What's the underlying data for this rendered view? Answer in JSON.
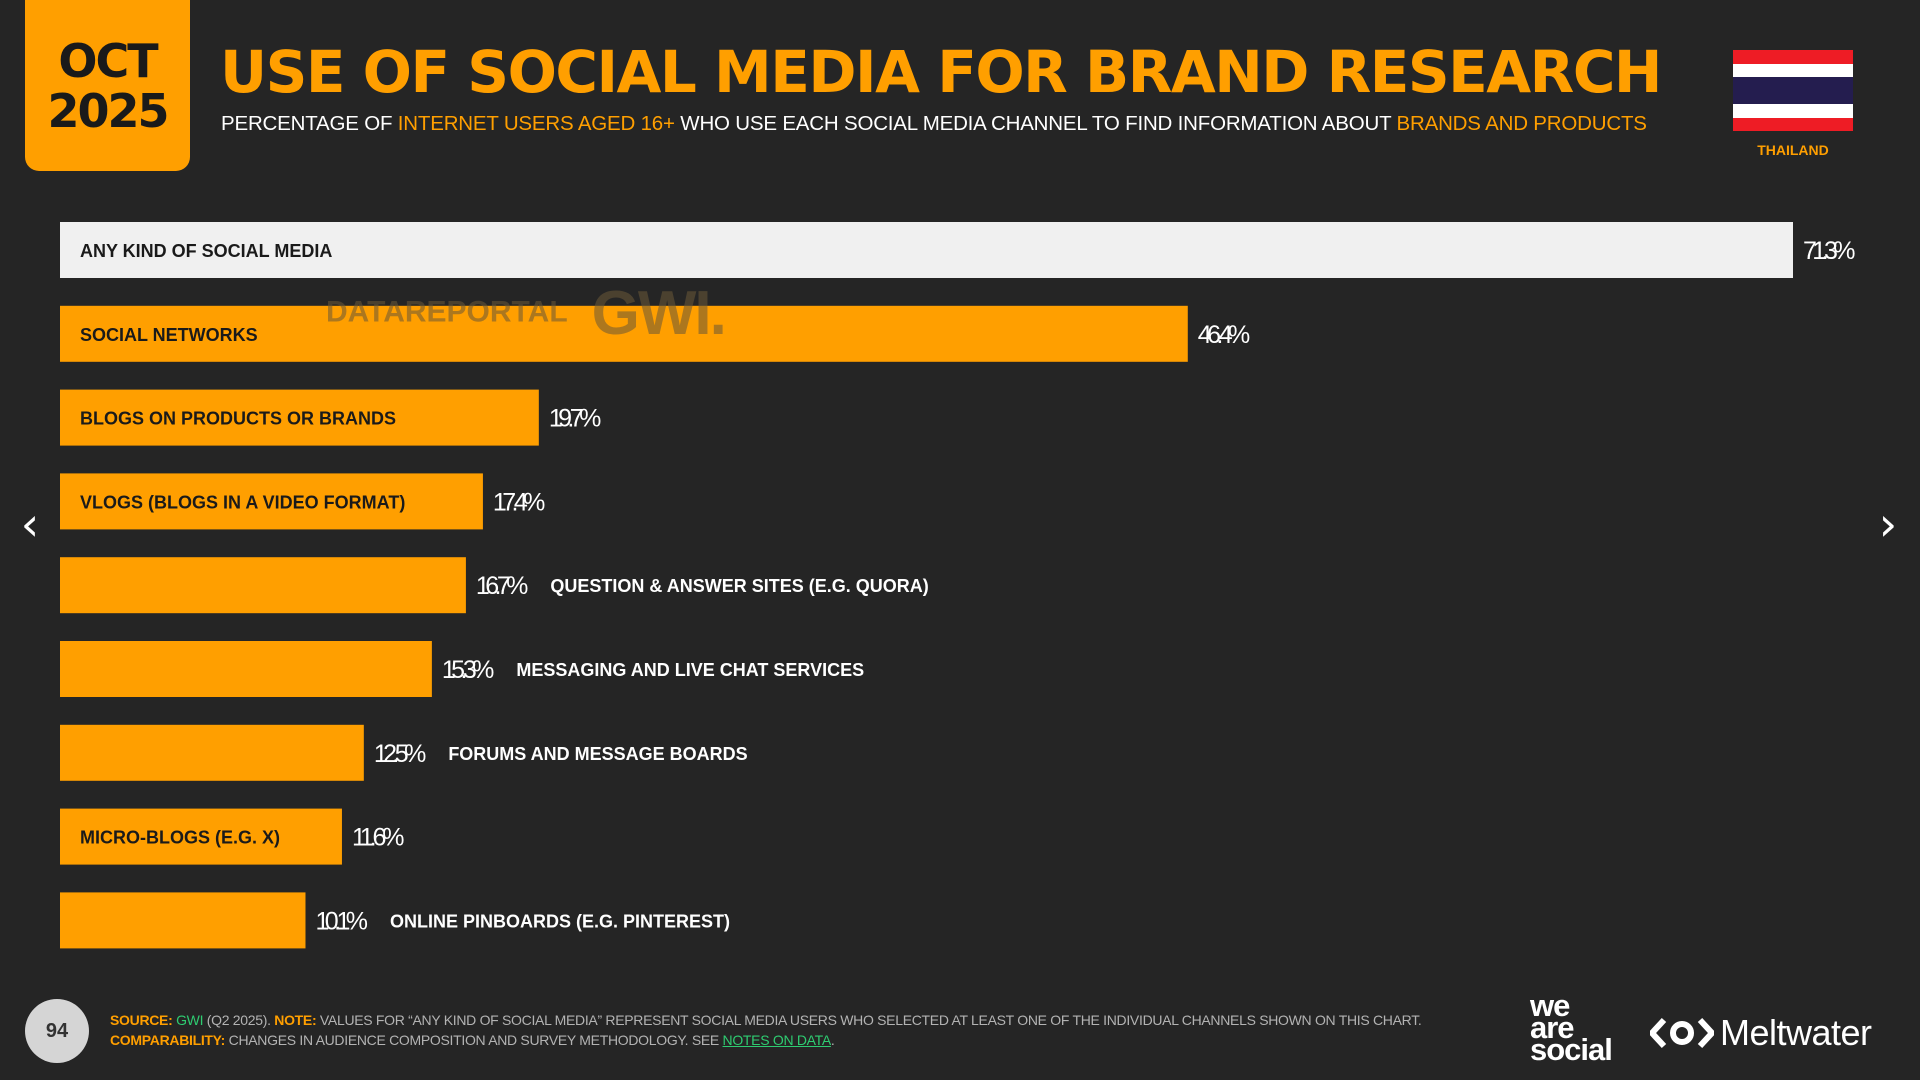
{
  "header": {
    "date_month": "OCT",
    "date_year": "2025",
    "title": "USE OF SOCIAL MEDIA FOR BRAND RESEARCH",
    "subtitle_parts": [
      "PERCENTAGE OF ",
      "INTERNET USERS AGED 16+",
      " WHO USE EACH SOCIAL MEDIA CHANNEL TO FIND INFORMATION ABOUT ",
      "BRANDS AND PRODUCTS"
    ]
  },
  "flag": {
    "country": "THAILAND",
    "colors": [
      "#EE1C25",
      "#FFFFFF",
      "#241D4F",
      "#FFFFFF",
      "#EE1C25"
    ]
  },
  "watermark": {
    "brand": "DATAREPORTAL",
    "partner": "GWI."
  },
  "nav": {
    "prev_glyph": "‹",
    "next_glyph": "›"
  },
  "colors": {
    "accent": "#FF9F00",
    "total_bar": "#F0F0F0",
    "background": "#252525"
  },
  "chart_data": {
    "type": "bar",
    "orientation": "horizontal",
    "categories": [
      "ANY KIND OF SOCIAL MEDIA",
      "SOCIAL NETWORKS",
      "BLOGS ON PRODUCTS OR BRANDS",
      "VLOGS (BLOGS IN A VIDEO FORMAT)",
      "QUESTION & ANSWER SITES (E.G. QUORA)",
      "MESSAGING AND LIVE CHAT SERVICES",
      "FORUMS AND MESSAGE BOARDS",
      "MICRO-BLOGS (E.G. X)",
      "ONLINE PINBOARDS (E.G. PINTEREST)"
    ],
    "values": [
      71.3,
      46.4,
      19.7,
      17.4,
      16.7,
      15.3,
      12.5,
      11.6,
      10.1
    ],
    "value_labels": [
      "71.3%",
      "46.4%",
      "19.7%",
      "17.4%",
      "16.7%",
      "15.3%",
      "12.5%",
      "11.6%",
      "10.1%"
    ],
    "label_inside": [
      true,
      true,
      true,
      true,
      false,
      false,
      false,
      true,
      false
    ],
    "xlim": [
      0,
      71.3
    ],
    "grid": false,
    "legend": "none"
  },
  "footer": {
    "page_number": "94",
    "source_label": "SOURCE:",
    "source_name": "GWI",
    "source_detail": " (Q2 2025). ",
    "note_label": "NOTE:",
    "note_text": " VALUES FOR “ANY KIND OF SOCIAL MEDIA” REPRESENT SOCIAL MEDIA USERS WHO SELECTED AT LEAST ONE OF THE INDIVIDUAL CHANNELS SHOWN ON THIS CHART.",
    "comparability_label": "COMPARABILITY:",
    "comparability_text": " CHANGES IN AUDIENCE COMPOSITION AND SURVEY METHODOLOGY. SEE ",
    "notes_link": "NOTES ON DATA",
    "period": "."
  },
  "logos": {
    "was_line1": "we",
    "was_line2": "are",
    "was_line3": "social",
    "meltwater": "Meltwater"
  }
}
